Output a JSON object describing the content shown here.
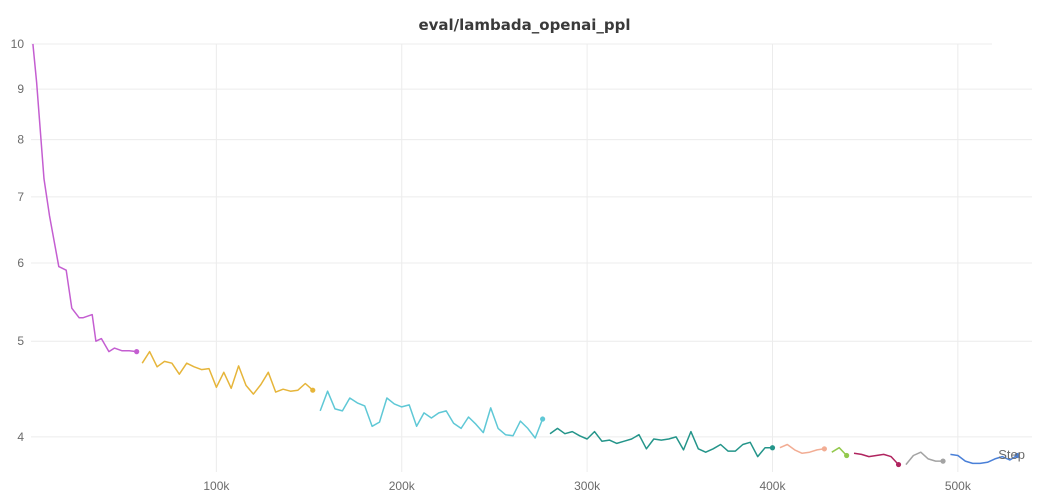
{
  "chart_data": {
    "type": "line",
    "title": "eval/lambada_openai_ppl",
    "xlabel": "Step",
    "ylabel": "",
    "yscale": "log",
    "xlim": [
      0,
      540000
    ],
    "ylim": [
      3.72,
      10.0
    ],
    "x_ticks": [
      100000,
      200000,
      300000,
      400000,
      500000
    ],
    "x_tick_labels": [
      "100k",
      "200k",
      "300k",
      "400k",
      "500k"
    ],
    "y_ticks": [
      4,
      5,
      6,
      7,
      8,
      9,
      10
    ],
    "y_tick_labels": [
      "4",
      "5",
      "6",
      "7",
      "8",
      "9",
      "10"
    ],
    "grid": true,
    "series": [
      {
        "color": "#c45ed1",
        "x": [
          1000,
          3000,
          7000,
          10000,
          15000,
          19000,
          22000,
          26000,
          28000,
          33000,
          35000,
          38000,
          42000,
          45000,
          49000,
          53000,
          57000
        ],
        "y": [
          10.0,
          9.15,
          7.3,
          6.7,
          5.95,
          5.9,
          5.4,
          5.28,
          5.28,
          5.32,
          5.0,
          5.03,
          4.88,
          4.92,
          4.89,
          4.89,
          4.88
        ]
      },
      {
        "color": "#e6b53a",
        "x": [
          60000,
          64000,
          68000,
          72000,
          76000,
          80000,
          84000,
          88000,
          92000,
          96000,
          100000,
          104000,
          108000,
          112000,
          116000,
          120000,
          124000,
          128000,
          132000,
          136000,
          140000,
          144000,
          148000,
          152000
        ],
        "y": [
          4.75,
          4.88,
          4.71,
          4.77,
          4.75,
          4.63,
          4.75,
          4.71,
          4.68,
          4.69,
          4.49,
          4.65,
          4.48,
          4.72,
          4.51,
          4.42,
          4.52,
          4.65,
          4.44,
          4.47,
          4.45,
          4.46,
          4.53,
          4.46
        ]
      },
      {
        "color": "#5fc8d6",
        "x": [
          156000,
          160000,
          164000,
          168000,
          172000,
          176000,
          180000,
          184000,
          188000,
          192000,
          196000,
          200000,
          204000,
          208000,
          212000,
          216000,
          220000,
          224000,
          228000,
          232000,
          236000,
          240000,
          244000,
          248000,
          252000,
          256000,
          260000,
          264000,
          268000,
          272000,
          276000
        ],
        "y": [
          4.25,
          4.45,
          4.27,
          4.25,
          4.38,
          4.33,
          4.3,
          4.1,
          4.14,
          4.38,
          4.32,
          4.29,
          4.31,
          4.1,
          4.23,
          4.18,
          4.23,
          4.25,
          4.13,
          4.08,
          4.19,
          4.12,
          4.04,
          4.28,
          4.08,
          4.02,
          4.01,
          4.15,
          4.08,
          3.99,
          4.17
        ]
      },
      {
        "color": "#24958a",
        "x": [
          280000,
          284000,
          288000,
          292000,
          296000,
          300000,
          304000,
          308000,
          312000,
          316000,
          320000,
          324000,
          328000,
          332000,
          336000,
          340000,
          344000,
          348000,
          352000,
          356000,
          360000,
          364000,
          368000,
          372000,
          376000,
          380000,
          384000,
          388000,
          392000,
          396000,
          400000
        ],
        "y": [
          4.03,
          4.08,
          4.03,
          4.05,
          4.01,
          3.98,
          4.05,
          3.96,
          3.97,
          3.94,
          3.96,
          3.98,
          4.02,
          3.89,
          3.98,
          3.97,
          3.98,
          4.0,
          3.88,
          4.05,
          3.89,
          3.86,
          3.89,
          3.93,
          3.87,
          3.87,
          3.93,
          3.95,
          3.82,
          3.9,
          3.9
        ]
      },
      {
        "color": "#f2ad94",
        "x": [
          404000,
          408000,
          412000,
          416000,
          420000,
          424000,
          428000
        ],
        "y": [
          3.9,
          3.93,
          3.88,
          3.85,
          3.86,
          3.88,
          3.89
        ]
      },
      {
        "color": "#93c94d",
        "x": [
          432000,
          436000,
          440000
        ],
        "y": [
          3.86,
          3.9,
          3.83
        ]
      },
      {
        "color": "#b0245f",
        "x": [
          444000,
          448000,
          452000,
          456000,
          460000,
          464000,
          468000
        ],
        "y": [
          3.85,
          3.84,
          3.82,
          3.83,
          3.84,
          3.82,
          3.75
        ]
      },
      {
        "color": "#a3a3a3",
        "x": [
          472000,
          476000,
          480000,
          484000,
          488000,
          492000
        ],
        "y": [
          3.75,
          3.83,
          3.86,
          3.8,
          3.78,
          3.78
        ]
      },
      {
        "color": "#4a80d8",
        "x": [
          496000,
          500000,
          504000,
          508000,
          512000,
          516000,
          520000,
          524000,
          528000,
          532000
        ],
        "y": [
          3.84,
          3.83,
          3.78,
          3.76,
          3.76,
          3.77,
          3.8,
          3.82,
          3.79,
          3.83
        ]
      }
    ]
  }
}
